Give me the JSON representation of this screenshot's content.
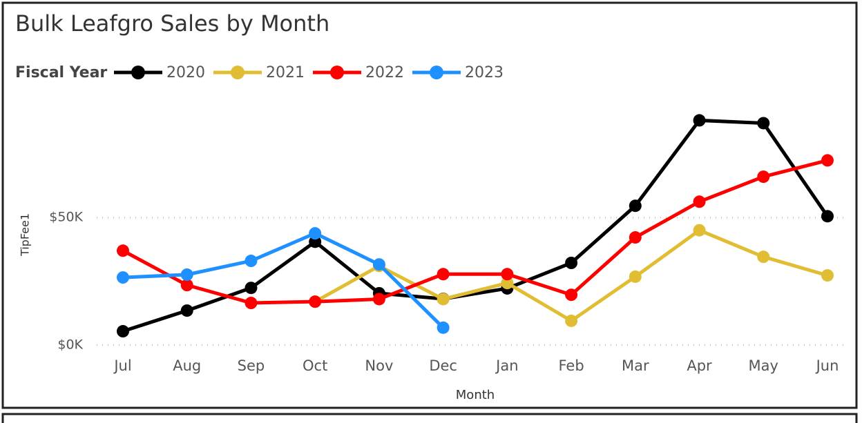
{
  "chart_data": {
    "type": "line",
    "title": "Bulk Leafgro Sales by Month",
    "legend_title": "Fiscal Year",
    "x_label": "Month",
    "y_label": "TipFee1",
    "categories": [
      "Jul",
      "Aug",
      "Sep",
      "Oct",
      "Nov",
      "Dec",
      "Jan",
      "Feb",
      "Mar",
      "Apr",
      "May",
      "Jun"
    ],
    "series": [
      {
        "name": "2020",
        "color": "#000000",
        "values": [
          5400,
          13500,
          22400,
          40500,
          20300,
          18100,
          22200,
          32200,
          54600,
          88100,
          87000,
          50500
        ]
      },
      {
        "name": "2021",
        "color": "#e0bd33",
        "values": [
          null,
          null,
          null,
          17000,
          31000,
          18000,
          24300,
          9500,
          26800,
          45000,
          34600,
          27300
        ]
      },
      {
        "name": "2022",
        "color": "#ff0000",
        "values": [
          37000,
          23500,
          16500,
          17000,
          18000,
          27800,
          27800,
          19700,
          42200,
          56200,
          66000,
          72400
        ]
      },
      {
        "name": "2023",
        "color": "#1e90ff",
        "values": [
          26500,
          27600,
          33000,
          43800,
          31600,
          6800,
          null,
          null,
          null,
          null,
          null,
          null
        ]
      }
    ],
    "ylim": [
      0,
      92000
    ],
    "yticks": [
      {
        "value": 0,
        "label": "$0K"
      },
      {
        "value": 50000,
        "label": "$50K"
      }
    ],
    "grid": true,
    "legend": "top-left"
  }
}
